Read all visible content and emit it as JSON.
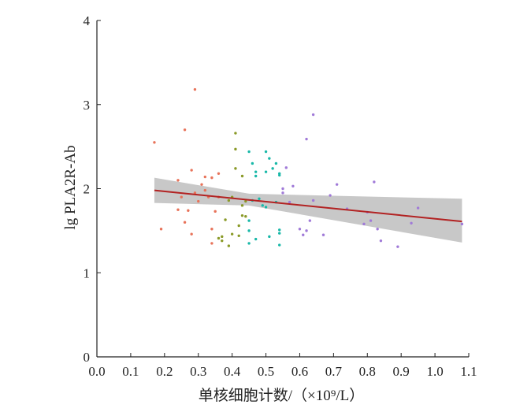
{
  "chart_data": {
    "type": "scatter",
    "xlabel": "单核细胞计数/（×10⁹/L）",
    "ylabel": "lg PLA2R-Ab",
    "xlim": [
      0.0,
      1.1
    ],
    "ylim": [
      0,
      4
    ],
    "x_ticks": [
      "0.0",
      "0.1",
      "0.2",
      "0.3",
      "0.4",
      "0.5",
      "0.6",
      "0.7",
      "0.8",
      "0.9",
      "1.0",
      "1.1"
    ],
    "y_ticks": [
      "0",
      "1",
      "2",
      "3",
      "4"
    ],
    "grid": false,
    "legend": "none",
    "fit_line": {
      "x": [
        0.17,
        1.08
      ],
      "y": [
        1.98,
        1.61
      ],
      "color": "#b22222"
    },
    "confidence_band": {
      "x": [
        0.17,
        0.45,
        1.08
      ],
      "upper": [
        2.13,
        1.94,
        1.88
      ],
      "lower": [
        1.83,
        1.8,
        1.36
      ],
      "color": "#c8c8c8"
    },
    "series": [
      {
        "color": "#e8735a",
        "points": [
          [
            0.17,
            2.55
          ],
          [
            0.19,
            1.52
          ],
          [
            0.24,
            2.1
          ],
          [
            0.25,
            1.9
          ],
          [
            0.26,
            2.7
          ],
          [
            0.26,
            1.6
          ],
          [
            0.27,
            1.74
          ],
          [
            0.28,
            2.22
          ],
          [
            0.28,
            1.46
          ],
          [
            0.29,
            3.18
          ],
          [
            0.29,
            1.95
          ],
          [
            0.3,
            1.85
          ],
          [
            0.31,
            2.05
          ],
          [
            0.32,
            2.14
          ],
          [
            0.32,
            1.98
          ],
          [
            0.33,
            1.9
          ],
          [
            0.34,
            2.13
          ],
          [
            0.34,
            1.52
          ],
          [
            0.34,
            1.35
          ],
          [
            0.35,
            1.73
          ],
          [
            0.36,
            2.18
          ],
          [
            0.24,
            1.75
          ],
          [
            0.36,
            1.9
          ]
        ]
      },
      {
        "color": "#8a9a28",
        "points": [
          [
            0.37,
            1.43
          ],
          [
            0.37,
            1.38
          ],
          [
            0.38,
            1.63
          ],
          [
            0.39,
            1.86
          ],
          [
            0.39,
            1.32
          ],
          [
            0.4,
            1.9
          ],
          [
            0.4,
            1.46
          ],
          [
            0.41,
            2.66
          ],
          [
            0.41,
            2.47
          ],
          [
            0.41,
            2.24
          ],
          [
            0.42,
            1.56
          ],
          [
            0.42,
            1.44
          ],
          [
            0.43,
            2.15
          ],
          [
            0.43,
            1.8
          ],
          [
            0.43,
            1.68
          ],
          [
            0.44,
            1.85
          ],
          [
            0.44,
            1.67
          ],
          [
            0.36,
            1.41
          ]
        ]
      },
      {
        "color": "#18b8a8",
        "points": [
          [
            0.45,
            2.44
          ],
          [
            0.45,
            1.62
          ],
          [
            0.45,
            1.5
          ],
          [
            0.45,
            1.35
          ],
          [
            0.46,
            2.3
          ],
          [
            0.46,
            1.86
          ],
          [
            0.47,
            2.2
          ],
          [
            0.47,
            2.15
          ],
          [
            0.47,
            1.4
          ],
          [
            0.48,
            1.88
          ],
          [
            0.49,
            1.8
          ],
          [
            0.5,
            2.44
          ],
          [
            0.5,
            2.2
          ],
          [
            0.5,
            1.78
          ],
          [
            0.51,
            2.36
          ],
          [
            0.51,
            1.43
          ],
          [
            0.52,
            2.24
          ],
          [
            0.53,
            2.3
          ],
          [
            0.53,
            1.84
          ],
          [
            0.54,
            2.18
          ],
          [
            0.54,
            2.16
          ],
          [
            0.54,
            1.51
          ],
          [
            0.54,
            1.47
          ],
          [
            0.54,
            1.33
          ]
        ]
      },
      {
        "color": "#a07ad8",
        "points": [
          [
            0.55,
            2.0
          ],
          [
            0.55,
            1.95
          ],
          [
            0.56,
            2.25
          ],
          [
            0.57,
            1.84
          ],
          [
            0.58,
            2.03
          ],
          [
            0.6,
            1.52
          ],
          [
            0.61,
            1.45
          ],
          [
            0.62,
            2.59
          ],
          [
            0.62,
            1.5
          ],
          [
            0.63,
            1.62
          ],
          [
            0.64,
            2.88
          ],
          [
            0.64,
            1.86
          ],
          [
            0.67,
            1.45
          ],
          [
            0.69,
            1.92
          ],
          [
            0.71,
            2.05
          ],
          [
            0.74,
            1.76
          ],
          [
            0.79,
            1.58
          ],
          [
            0.8,
            1.72
          ],
          [
            0.81,
            1.62
          ],
          [
            0.82,
            2.08
          ],
          [
            0.83,
            1.52
          ],
          [
            0.84,
            1.38
          ],
          [
            0.89,
            1.31
          ],
          [
            0.93,
            1.59
          ],
          [
            0.95,
            1.77
          ],
          [
            1.08,
            1.58
          ]
        ]
      }
    ]
  }
}
